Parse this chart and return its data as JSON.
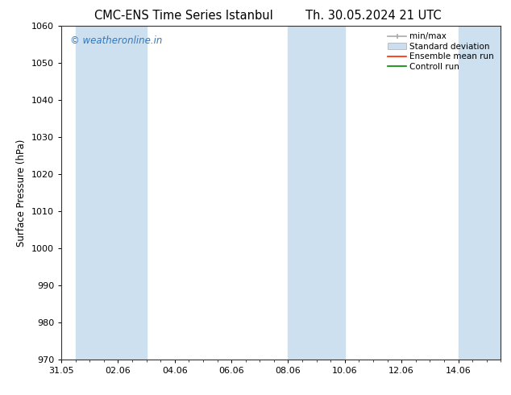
{
  "title_left": "CMC-ENS Time Series Istanbul",
  "title_right": "Th. 30.05.2024 21 UTC",
  "ylabel": "Surface Pressure (hPa)",
  "ylim": [
    970,
    1060
  ],
  "yticks": [
    970,
    980,
    990,
    1000,
    1010,
    1020,
    1030,
    1040,
    1050,
    1060
  ],
  "xlim_start": 0,
  "xlim_end": 15.5,
  "xtick_labels": [
    "31.05",
    "02.06",
    "04.06",
    "06.06",
    "08.06",
    "10.06",
    "12.06",
    "14.06"
  ],
  "xtick_positions": [
    0,
    2,
    4,
    6,
    8,
    10,
    12,
    14
  ],
  "shaded_bands": [
    {
      "x_start": 0.5,
      "x_end": 3.0
    },
    {
      "x_start": 8.0,
      "x_end": 10.0
    },
    {
      "x_start": 14.0,
      "x_end": 15.5
    }
  ],
  "band_color": "#cce0f0",
  "watermark_text": "© weatheronline.in",
  "watermark_color": "#3377bb",
  "legend_labels": [
    "min/max",
    "Standard deviation",
    "Ensemble mean run",
    "Controll run"
  ],
  "legend_colors": [
    "#aaaaaa",
    "#ccdded",
    "#ff2200",
    "#008800"
  ],
  "bg_color": "#ffffff",
  "font_color": "#000000",
  "title_fontsize": 10.5,
  "axis_label_fontsize": 8.5,
  "tick_fontsize": 8,
  "watermark_fontsize": 8.5,
  "legend_fontsize": 7.5
}
